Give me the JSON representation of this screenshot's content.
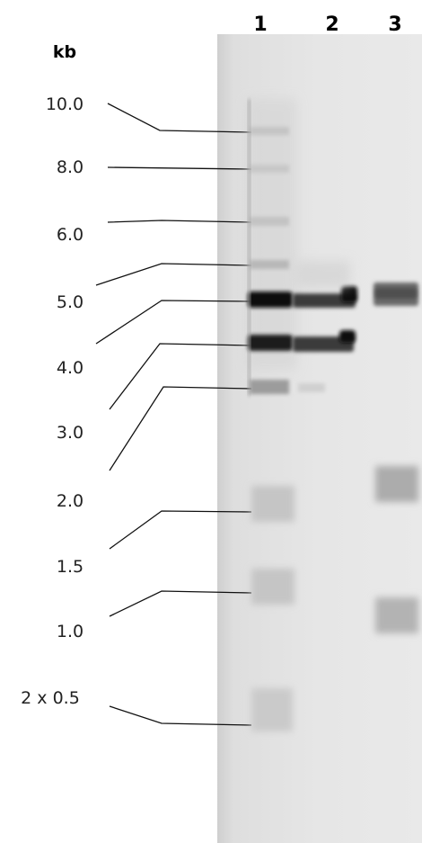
{
  "figure": {
    "unit": "kb",
    "lanes": [
      "1",
      "2",
      "3"
    ],
    "ladder_sizes": [
      "10.0",
      "8.0",
      "6.0",
      "5.0",
      "4.0",
      "3.0",
      "2.0",
      "1.5",
      "1.0",
      "2 x 0.5"
    ]
  },
  "colors": {
    "gel_background": "#e4e4e4",
    "band_dark": "#1a1a1a",
    "band_medium": "#555555",
    "band_faint": "#bdbdbd"
  }
}
